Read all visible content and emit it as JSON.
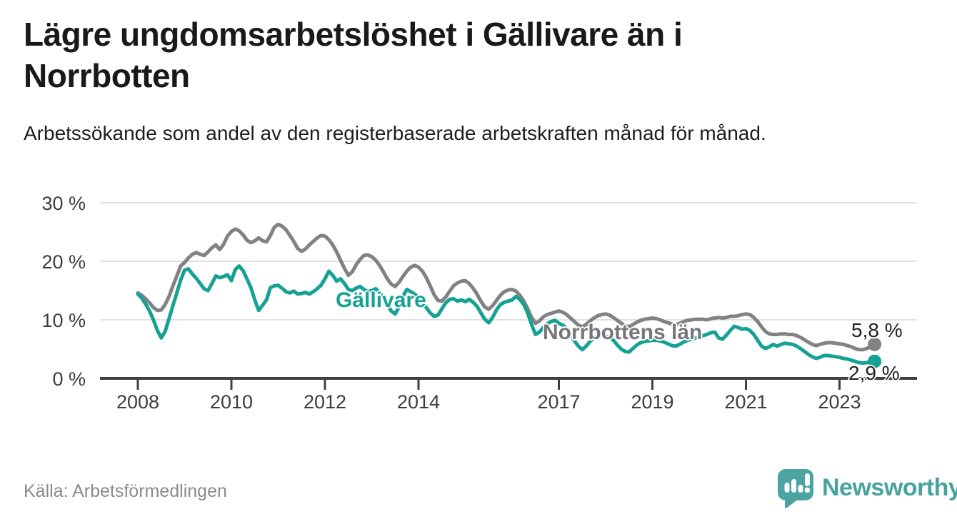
{
  "header": {
    "title": "Lägre ungdomsarbetslöshet i Gällivare än i Norrbotten",
    "subtitle": "Arbetssökande som andel av den registerbaserade arbetskraften månad för månad."
  },
  "footer": {
    "source": "Källa: Arbetsförmedlingen",
    "brand_name": "Newsworthy"
  },
  "colors": {
    "gallivare": "#16a195",
    "norrbotten": "#818286",
    "norrbotten_label": "#76777b",
    "axis_line": "#404040",
    "axis_text": "#3d3d3d",
    "grid": "#e2e2e2",
    "text_dark": "#191919",
    "end_value_text": "#222222",
    "source_text": "#8b8b8b",
    "brand_teal": "#46a39e"
  },
  "chart_data": {
    "type": "line",
    "unit": "%",
    "start": "2008-01",
    "end": "2023-10",
    "frequency": "monthly",
    "ylim": [
      0,
      30
    ],
    "grid": "horizontal",
    "legend_position": "inline-labels",
    "y_ticks": [
      {
        "value": 0,
        "label": "0 %"
      },
      {
        "value": 10,
        "label": "10 %"
      },
      {
        "value": 20,
        "label": "20 %"
      },
      {
        "value": 30,
        "label": "30 %"
      }
    ],
    "x_ticks": [
      {
        "year": 2008,
        "label": "2008"
      },
      {
        "year": 2010,
        "label": "2010"
      },
      {
        "year": 2012,
        "label": "2012"
      },
      {
        "year": 2014,
        "label": "2014"
      },
      {
        "year": 2017,
        "label": "2017"
      },
      {
        "year": 2019,
        "label": "2019"
      },
      {
        "year": 2021,
        "label": "2021"
      },
      {
        "year": 2023,
        "label": "2023"
      }
    ],
    "annotations": {
      "gallivare_label": "Gällivare",
      "norrbotten_label": "Norrbottens län",
      "norrbotten_end": "5,8 %",
      "gallivare_end": "2,9 %"
    },
    "series": [
      {
        "name": "Norrbottens län",
        "color": "#818286",
        "end_label": "5,8 %",
        "last_value": 5.8,
        "values": [
          14.6,
          14.2,
          13.6,
          12.9,
          12.1,
          11.6,
          11.7,
          12.6,
          14.0,
          15.8,
          17.5,
          19.2,
          19.8,
          20.6,
          21.2,
          21.5,
          21.2,
          21.0,
          21.6,
          22.3,
          22.8,
          22.0,
          22.9,
          24.3,
          25.1,
          25.5,
          25.2,
          24.5,
          23.6,
          23.2,
          23.5,
          24.0,
          23.5,
          23.3,
          24.4,
          25.8,
          26.3,
          26.0,
          25.4,
          24.4,
          23.4,
          22.2,
          21.7,
          22.1,
          22.8,
          23.4,
          24.0,
          24.4,
          24.3,
          23.7,
          22.8,
          21.6,
          20.2,
          18.8,
          17.6,
          18.2,
          19.4,
          20.3,
          21.0,
          21.1,
          20.8,
          20.2,
          19.3,
          18.2,
          17.0,
          16.1,
          15.7,
          16.4,
          17.4,
          18.3,
          19.0,
          19.3,
          19.0,
          18.3,
          17.2,
          15.8,
          14.3,
          13.3,
          13.2,
          13.9,
          14.9,
          15.8,
          16.3,
          16.6,
          16.7,
          16.2,
          15.4,
          14.4,
          13.2,
          12.2,
          11.8,
          12.4,
          13.3,
          14.2,
          14.8,
          15.1,
          15.2,
          14.9,
          14.2,
          13.2,
          11.9,
          10.4,
          9.4,
          9.8,
          10.5,
          10.9,
          11.1,
          11.3,
          11.5,
          11.3,
          10.9,
          10.3,
          9.7,
          9.1,
          8.8,
          9.2,
          9.8,
          10.3,
          10.7,
          10.9,
          11.0,
          10.8,
          10.4,
          9.9,
          9.4,
          9.0,
          8.8,
          9.2,
          9.6,
          9.9,
          10.1,
          10.2,
          10.3,
          10.2,
          10.0,
          9.7,
          9.5,
          9.3,
          9.2,
          9.4,
          9.7,
          9.9,
          10.0,
          10.1,
          10.1,
          10.1,
          10.0,
          10.2,
          10.3,
          10.4,
          10.3,
          10.4,
          10.6,
          10.6,
          10.7,
          10.9,
          11.0,
          10.9,
          10.4,
          9.7,
          8.8,
          8.0,
          7.6,
          7.5,
          7.5,
          7.6,
          7.6,
          7.5,
          7.5,
          7.3,
          7.0,
          6.6,
          6.2,
          5.8,
          5.6,
          5.8,
          6.0,
          6.1,
          6.1,
          6.0,
          5.9,
          5.8,
          5.6,
          5.4,
          5.1,
          4.9,
          4.9,
          5.1,
          5.4,
          5.8
        ]
      },
      {
        "name": "Gällivare",
        "color": "#16a195",
        "end_label": "2,9 %",
        "last_value": 2.9,
        "values": [
          14.4,
          13.7,
          12.7,
          11.5,
          10.0,
          8.2,
          6.9,
          8.0,
          10.2,
          12.4,
          14.6,
          16.8,
          18.5,
          18.7,
          17.8,
          17.1,
          16.2,
          15.3,
          15.0,
          16.2,
          17.5,
          17.2,
          17.4,
          17.7,
          16.7,
          18.6,
          19.2,
          18.4,
          17.0,
          15.5,
          13.4,
          11.6,
          12.5,
          13.4,
          15.5,
          15.8,
          15.9,
          15.4,
          14.8,
          14.6,
          14.9,
          14.4,
          14.5,
          14.7,
          14.4,
          14.8,
          15.3,
          15.9,
          17.0,
          18.3,
          17.6,
          16.6,
          17.0,
          16.2,
          15.2,
          15.0,
          15.4,
          15.7,
          15.2,
          14.8,
          15.0,
          15.3,
          14.7,
          13.8,
          12.6,
          11.5,
          11.0,
          12.2,
          14.0,
          15.2,
          14.8,
          14.4,
          13.8,
          13.0,
          12.1,
          11.2,
          10.6,
          10.8,
          11.9,
          12.9,
          13.5,
          13.6,
          13.2,
          13.4,
          13.1,
          13.5,
          13.0,
          12.3,
          11.2,
          10.1,
          9.5,
          10.4,
          11.7,
          12.6,
          13.0,
          13.2,
          13.4,
          14.0,
          13.5,
          12.6,
          11.2,
          9.2,
          7.5,
          7.9,
          8.7,
          9.3,
          9.7,
          9.9,
          9.4,
          9.1,
          8.5,
          7.5,
          6.4,
          5.5,
          4.9,
          5.5,
          6.3,
          6.9,
          7.2,
          7.3,
          7.2,
          7.0,
          6.5,
          5.7,
          5.0,
          4.6,
          4.5,
          5.1,
          5.7,
          6.1,
          6.3,
          6.4,
          6.5,
          6.5,
          6.4,
          6.2,
          5.9,
          5.6,
          5.5,
          5.8,
          6.2,
          6.5,
          6.7,
          6.9,
          7.1,
          7.3,
          7.5,
          7.8,
          7.9,
          6.9,
          6.7,
          7.4,
          8.2,
          8.9,
          8.7,
          8.4,
          8.5,
          8.2,
          7.5,
          6.5,
          5.5,
          5.1,
          5.4,
          5.8,
          5.5,
          5.8,
          6.0,
          5.9,
          5.8,
          5.5,
          5.1,
          4.6,
          4.1,
          3.7,
          3.4,
          3.6,
          3.9,
          3.9,
          3.8,
          3.7,
          3.6,
          3.4,
          3.3,
          3.1,
          2.9,
          2.7,
          2.6,
          2.7,
          2.8,
          2.9
        ]
      }
    ]
  }
}
